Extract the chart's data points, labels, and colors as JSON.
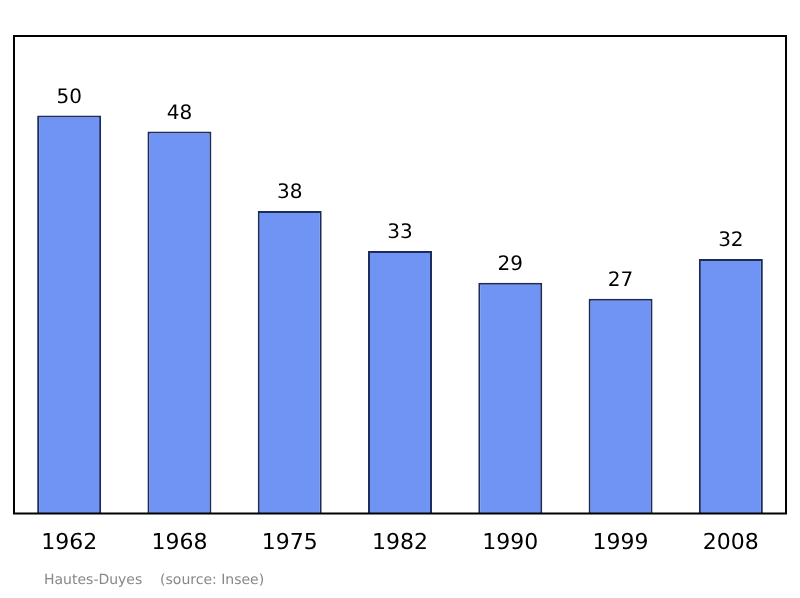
{
  "chart_data": {
    "type": "bar",
    "categories": [
      "1962",
      "1968",
      "1975",
      "1982",
      "1990",
      "1999",
      "2008"
    ],
    "values": [
      50,
      48,
      38,
      33,
      29,
      27,
      32
    ],
    "color": "#7094f4",
    "data_labels": true,
    "grid": false,
    "legend": false,
    "annotations": [
      "Hautes-Duyes    (source: Insee)"
    ]
  }
}
